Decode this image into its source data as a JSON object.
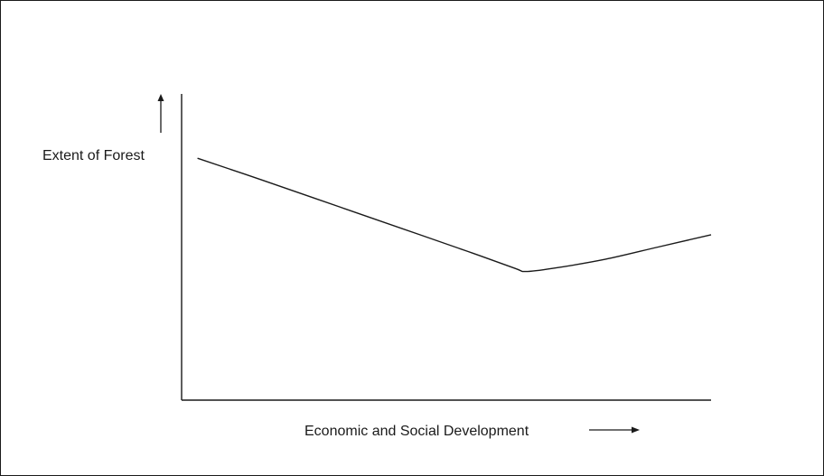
{
  "diagram": {
    "y_axis_label": "Extent of Forest",
    "x_axis_label": "Economic and Social Development"
  },
  "chart_data": {
    "type": "line",
    "title": "",
    "xlabel": "Economic and Social Development",
    "ylabel": "Extent of Forest",
    "grid": false,
    "legend": "none",
    "xlim": [
      0,
      10
    ],
    "ylim": [
      0,
      10
    ],
    "series": [
      {
        "x": [
          0.3,
          1.5,
          3.0,
          4.5,
          5.5,
          6.3,
          6.5,
          7.0,
          8.0,
          9.0,
          10.0
        ],
        "y": [
          7.9,
          7.2,
          6.3,
          5.4,
          4.8,
          4.3,
          4.2,
          4.3,
          4.6,
          5.0,
          5.4
        ]
      }
    ],
    "line_color": "#1a1a1a"
  }
}
